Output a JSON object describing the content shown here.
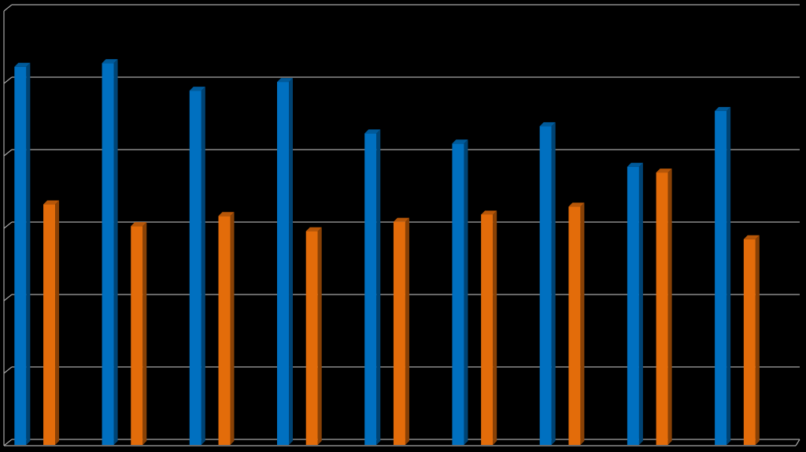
{
  "chart_data": {
    "type": "bar3d",
    "categories": [
      null,
      null,
      null,
      null,
      null,
      null,
      null,
      null,
      null
    ],
    "series": [
      {
        "color": "#0070c0",
        "values": [
          5.22,
          5.27,
          4.89,
          5.01,
          4.3,
          4.16,
          4.4,
          3.84,
          4.61
        ]
      },
      {
        "color": "#e36c0a",
        "values": [
          3.32,
          3.02,
          3.16,
          2.95,
          3.08,
          3.18,
          3.29,
          3.76,
          2.84
        ]
      }
    ],
    "ylim": [
      0,
      6
    ],
    "yticks": [
      0,
      1,
      2,
      3,
      4,
      5,
      6
    ],
    "grid": true
  }
}
